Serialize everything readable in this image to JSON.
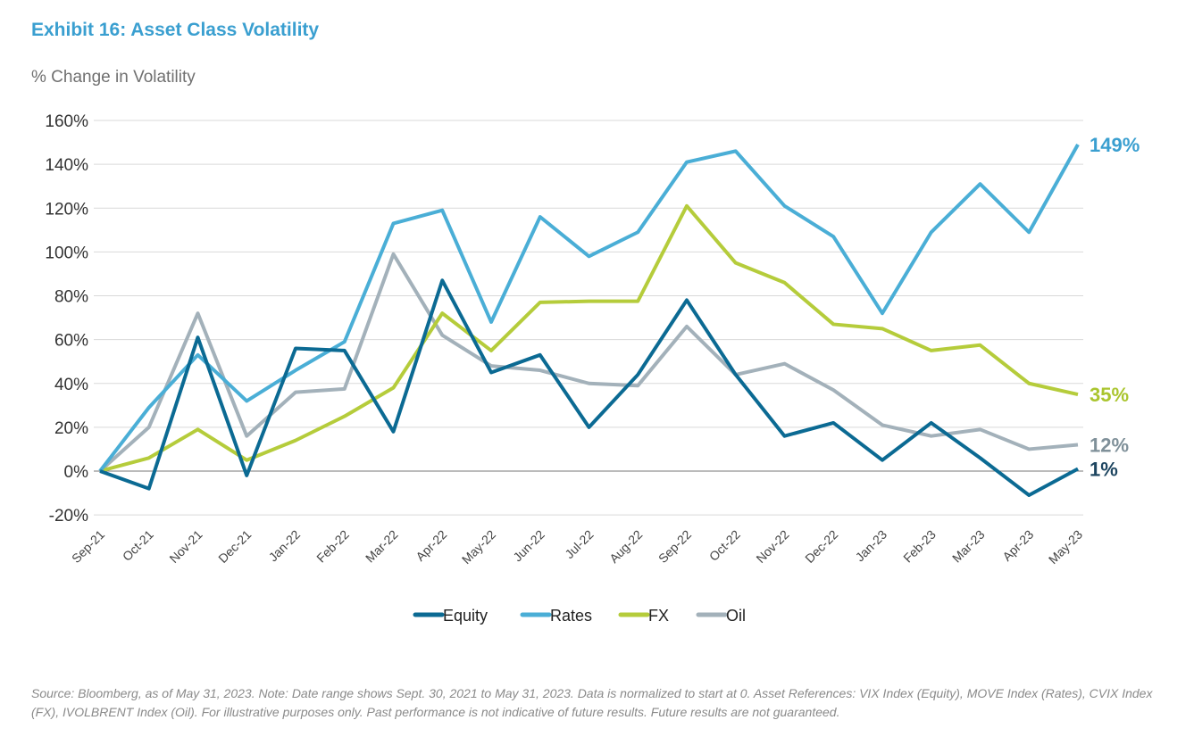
{
  "chart_data": {
    "type": "line",
    "title": "Exhibit 16: Asset Class Volatility",
    "ylabel": "% Change in Volatility",
    "ylim": [
      -20,
      160
    ],
    "yticks": [
      "-20%",
      "0%",
      "20%",
      "40%",
      "60%",
      "80%",
      "100%",
      "120%",
      "140%",
      "160%"
    ],
    "grid": true,
    "legend": "bottom",
    "categories": [
      "Sep-21",
      "Oct-21",
      "Nov-21",
      "Dec-21",
      "Jan-22",
      "Feb-22",
      "Mar-22",
      "Apr-22",
      "May-22",
      "Jun-22",
      "Jul-22",
      "Aug-22",
      "Sep-22",
      "Oct-22",
      "Nov-22",
      "Dec-22",
      "Jan-23",
      "Feb-23",
      "Mar-23",
      "Apr-23",
      "May-23"
    ],
    "series": [
      {
        "name": "Equity",
        "color": "#0b6a93",
        "end_label": "1%",
        "end_color": "#1d4560",
        "values": [
          0,
          -8,
          61,
          -2,
          56,
          55,
          18,
          87,
          45,
          53,
          20,
          44,
          78,
          44,
          16,
          22,
          5,
          22,
          6,
          -11,
          1
        ]
      },
      {
        "name": "Rates",
        "color": "#4aaed6",
        "end_label": "149%",
        "end_color": "#3a9fd0",
        "values": [
          0,
          29,
          53,
          32,
          46,
          59,
          113,
          119,
          68,
          116,
          98,
          109,
          141,
          146,
          121,
          107,
          72,
          109,
          131,
          109,
          149
        ]
      },
      {
        "name": "FX",
        "color": "#b5cc3b",
        "end_label": "35%",
        "end_color": "#aac52e",
        "values": [
          0,
          6,
          19,
          5,
          14,
          25,
          38,
          72,
          55,
          77,
          77.5,
          77.5,
          121,
          95,
          86,
          67,
          65,
          55,
          57.5,
          40,
          35
        ]
      },
      {
        "name": "Oil",
        "color": "#a3b1ba",
        "end_label": "12%",
        "end_color": "#7f9099",
        "values": [
          0,
          20,
          72,
          16,
          36,
          37.5,
          99,
          62,
          48,
          46,
          40,
          39,
          66,
          44,
          49,
          37,
          21,
          16,
          19,
          10,
          12
        ]
      }
    ]
  },
  "footnote": "Source: Bloomberg, as of May 31, 2023. Note: Date range shows Sept. 30, 2021 to May 31, 2023. Data is normalized to start at 0. Asset References: VIX Index (Equity), MOVE Index (Rates), CVIX Index (FX), IVOLBRENT Index (Oil). For illustrative purposes only. Past performance is not indicative of future results. Future results are not guaranteed."
}
